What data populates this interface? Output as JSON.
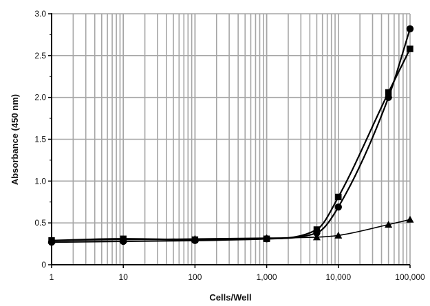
{
  "chart_data": {
    "type": "scatter",
    "title": "",
    "xlabel": "Cells/Well",
    "ylabel": "Absorbance (450 nm)",
    "xscale": "log",
    "xlim": [
      1,
      100000
    ],
    "ylim": [
      0,
      3.0
    ],
    "grid": true,
    "legend": "none",
    "x_ticks": [
      1,
      10,
      100,
      1000,
      10000,
      100000
    ],
    "x_tick_labels": [
      "1",
      "10",
      "100",
      "1,000",
      "10,000",
      "100,000"
    ],
    "y_ticks": [
      0,
      0.5,
      1.0,
      1.5,
      2.0,
      2.5,
      3.0
    ],
    "y_tick_labels": [
      "0",
      "0.5",
      "1.0",
      "1.5",
      "2.0",
      "2.5",
      "3.0"
    ],
    "series": [
      {
        "marker": "circle",
        "x": [
          1,
          10,
          100,
          1000,
          5000,
          10000,
          50000,
          100000
        ],
        "y": [
          0.27,
          0.28,
          0.29,
          0.31,
          0.38,
          0.69,
          2.0,
          2.82
        ]
      },
      {
        "marker": "square",
        "x": [
          1,
          10,
          100,
          1000,
          5000,
          10000,
          50000,
          100000
        ],
        "y": [
          0.29,
          0.31,
          0.3,
          0.31,
          0.42,
          0.81,
          2.06,
          2.58
        ]
      },
      {
        "marker": "triangle",
        "x": [
          1,
          10,
          100,
          1000,
          5000,
          10000,
          50000,
          100000
        ],
        "y": [
          0.29,
          0.3,
          0.31,
          0.32,
          0.33,
          0.35,
          0.48,
          0.54
        ]
      }
    ]
  }
}
